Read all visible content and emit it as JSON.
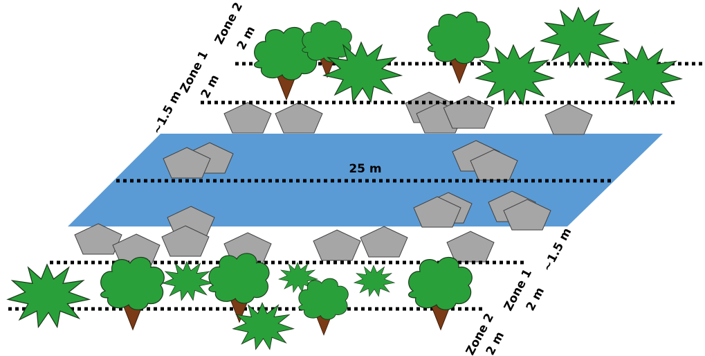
{
  "colors": {
    "water": "#5b9bd5",
    "rock": "#a6a6a6",
    "vegetation": "#2aa03a",
    "trunk": "#7a3b16"
  },
  "labels": {
    "top_bank_width": "~1.5 m",
    "top_zone1": "Zone 1",
    "top_zone1_width": "2 m",
    "top_zone2": "Zone 2",
    "top_zone2_width": "2 m",
    "river_width": "25 m",
    "bottom_bank_width": "~1.5 m",
    "bottom_zone1": "Zone 1",
    "bottom_zone1_width": "2 m",
    "bottom_zone2": "Zone 2",
    "bottom_zone2_width": "2 m"
  }
}
